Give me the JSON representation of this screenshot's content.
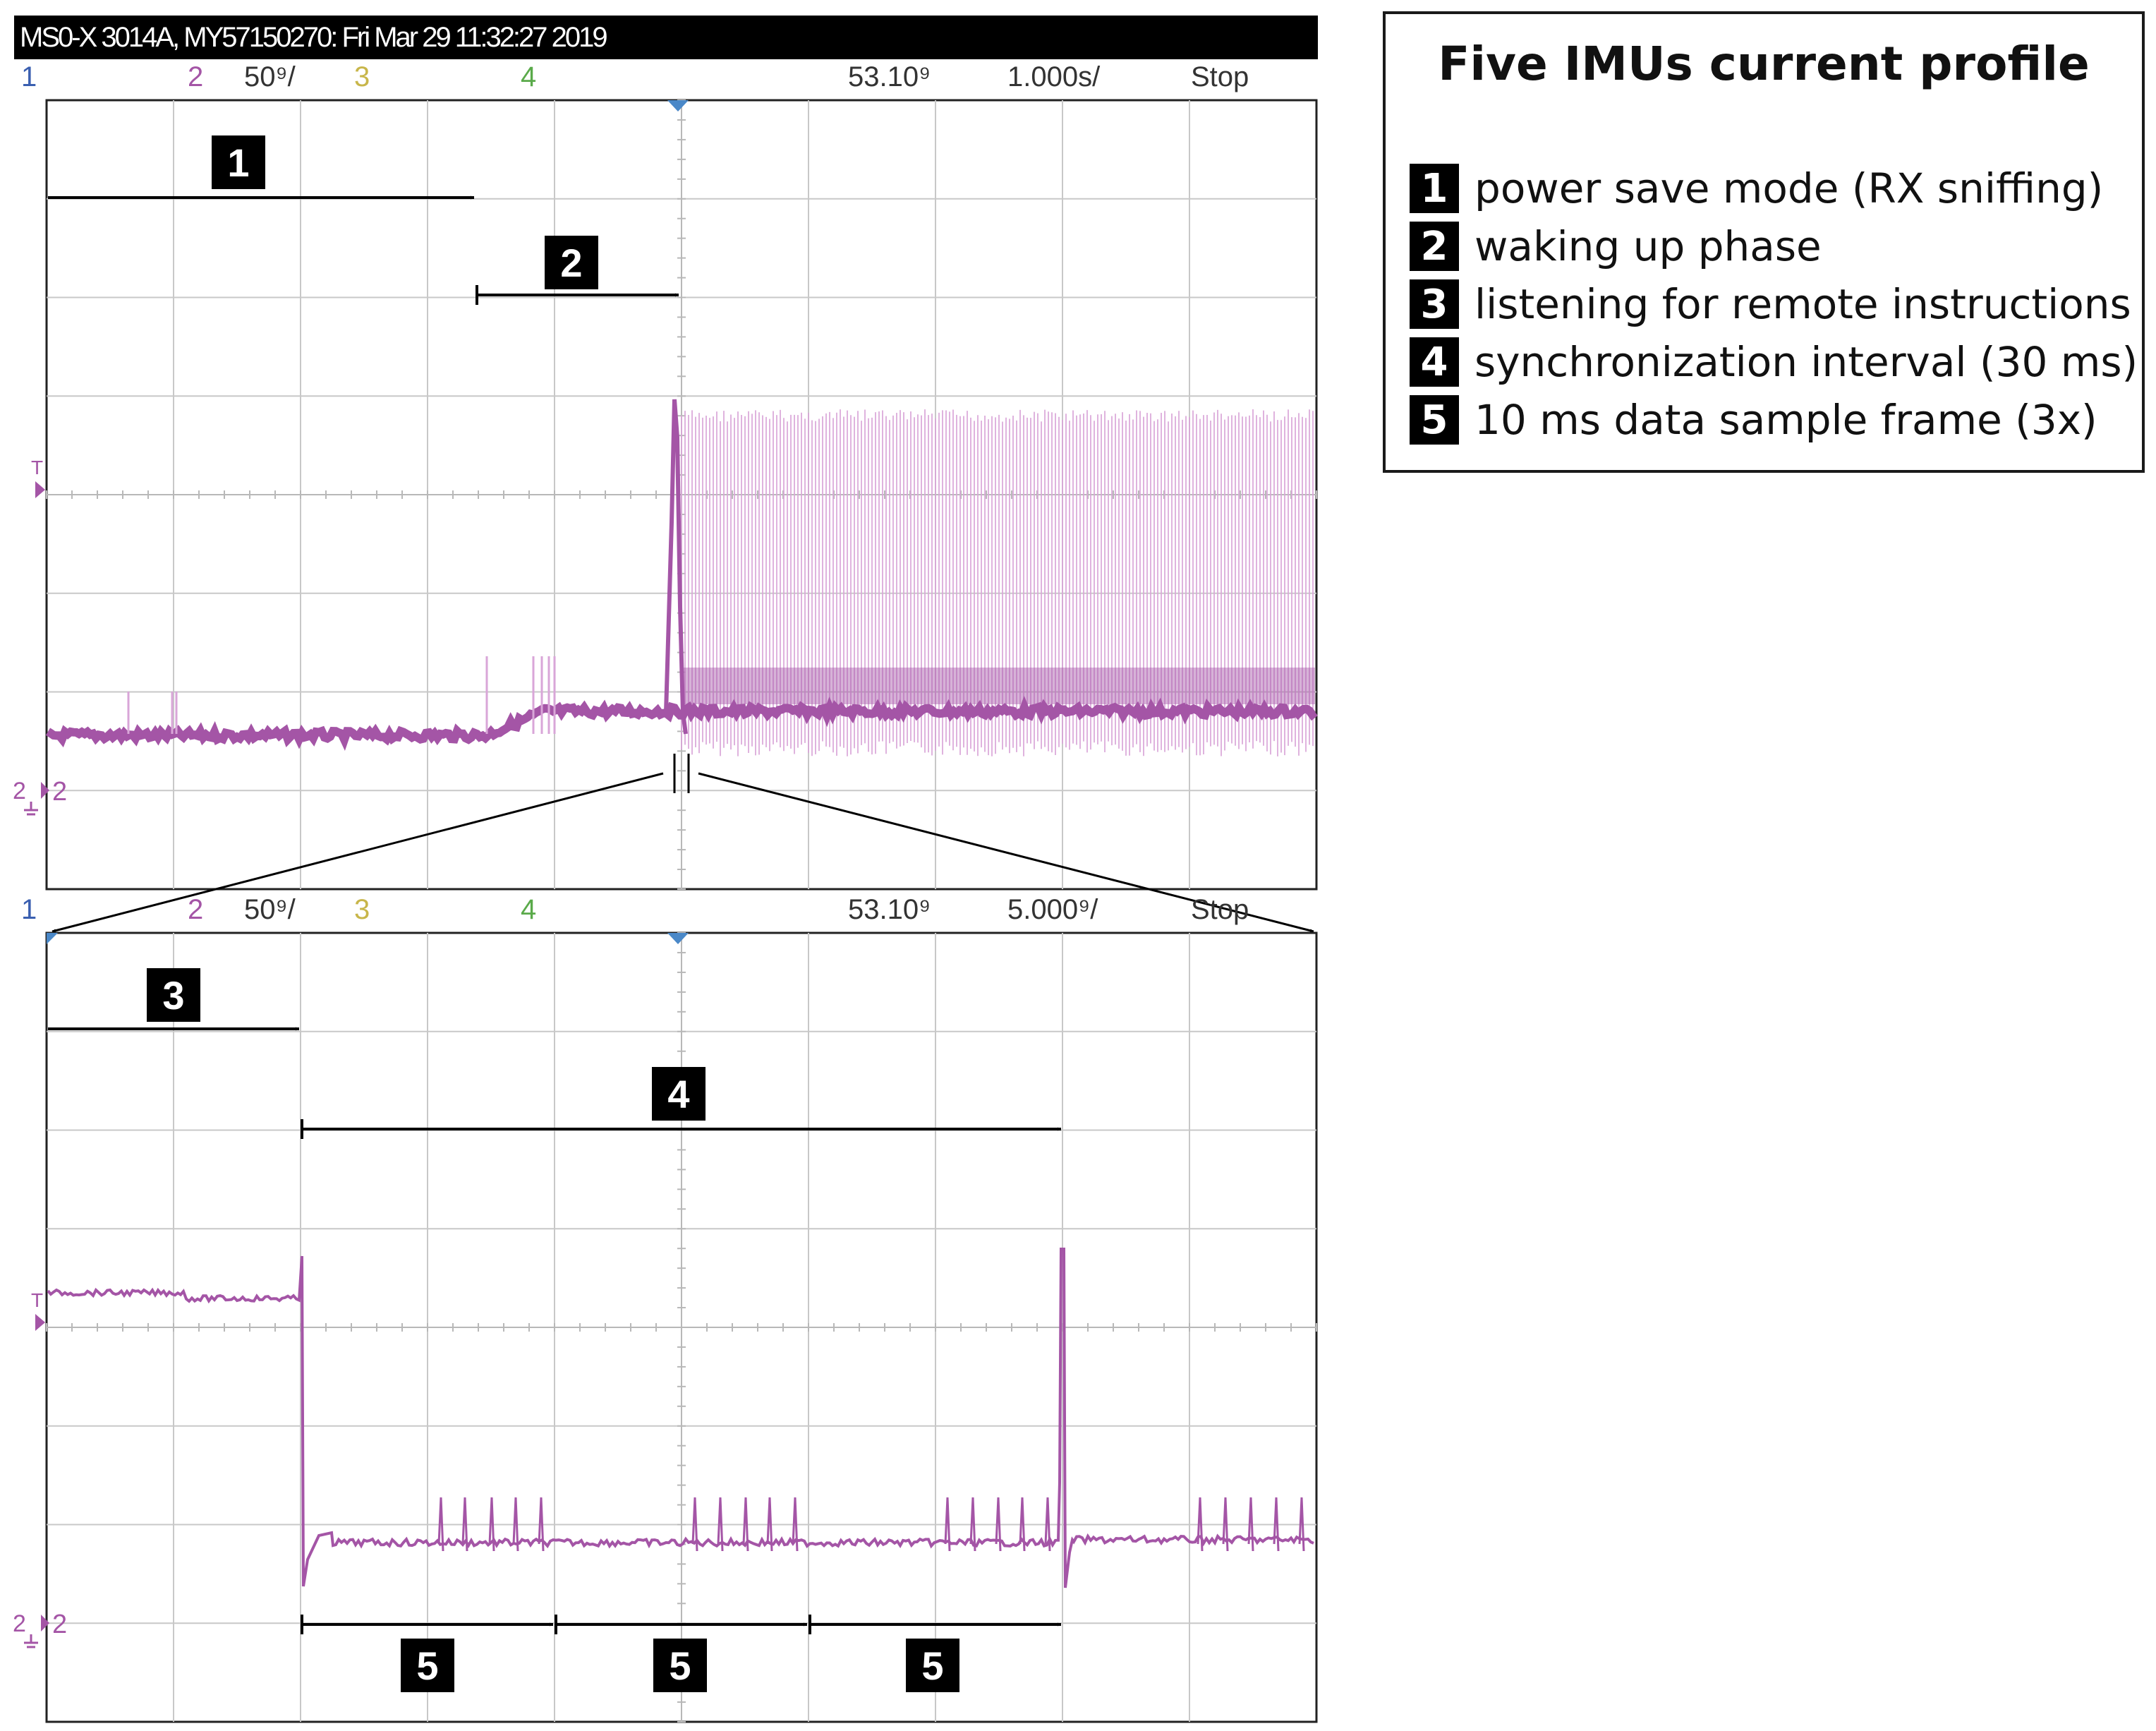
{
  "scope": {
    "title": "MS0-X 3014A, MY57150270: Fri Mar 29 11:32:27 2019",
    "top_panel": {
      "ch1": "1",
      "ch2": "2",
      "volts_per_div": "50⁹/",
      "ch3": "3",
      "ch4": "4",
      "delay": "53.10⁹",
      "time_per_div": "1.000s/",
      "run_state": "Stop",
      "trigger_label": "T",
      "ground_label": "2"
    },
    "bottom_panel": {
      "ch1": "1",
      "ch2": "2",
      "volts_per_div": "50⁹/",
      "ch3": "3",
      "ch4": "4",
      "delay": "53.10⁹",
      "time_per_div": "5.000⁹/",
      "run_state": "Stop",
      "trigger_label": "T",
      "ground_label": "2"
    }
  },
  "markers": {
    "m1": "1",
    "m2": "2",
    "m3": "3",
    "m4": "4",
    "m5a": "5",
    "m5b": "5",
    "m5c": "5"
  },
  "legend": {
    "title": "Five IMUs current profile",
    "items": [
      {
        "num": "1",
        "text": "power save mode (RX sniffing)"
      },
      {
        "num": "2",
        "text": "waking up phase"
      },
      {
        "num": "3",
        "text": "listening for remote instructions"
      },
      {
        "num": "4",
        "text": "synchronization interval (30 ms)"
      },
      {
        "num": "5",
        "text": "10 ms data sample frame (3x)"
      }
    ]
  },
  "colors": {
    "trace": "#a455a6",
    "trace_light": "#d9a6d8",
    "ch1": "#3a5fb0",
    "ch2": "#a455a6",
    "ch3": "#c8b64a",
    "ch4": "#5aaa4a",
    "grid": "#c8c8c8",
    "background": "#ffffff"
  }
}
